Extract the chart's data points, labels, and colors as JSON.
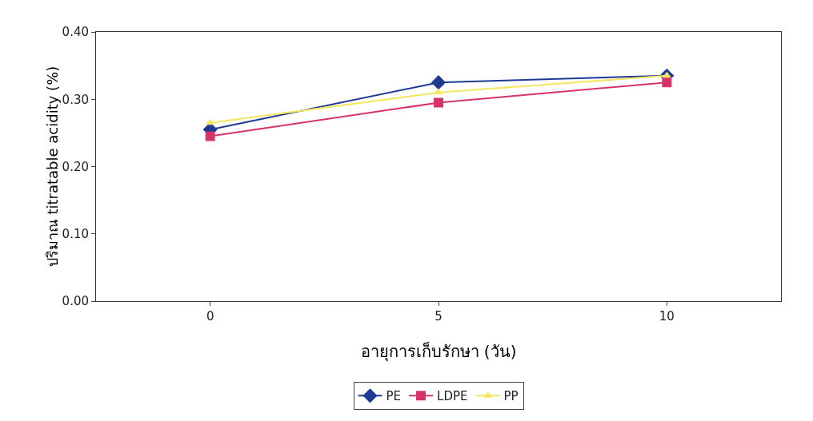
{
  "chart_data": {
    "type": "line",
    "xlabel": "อายุการเก็บรักษา (วัน)",
    "ylabel": "ปริมาณ titratable acidity (%)",
    "categories": [
      "0",
      "5",
      "10"
    ],
    "series": [
      {
        "name": "PE",
        "color": "#1f3a93",
        "marker": "diamond",
        "values": [
          0.255,
          0.325,
          0.335
        ]
      },
      {
        "name": "LDPE",
        "color": "#d6336c",
        "marker": "square",
        "values": [
          0.245,
          0.295,
          0.325
        ]
      },
      {
        "name": "PP",
        "color": "#f5e663",
        "marker": "triangle",
        "values": [
          0.265,
          0.31,
          0.335
        ]
      }
    ],
    "ylim": [
      0,
      0.4
    ],
    "yticks": [
      {
        "value": 0,
        "label": "0.00"
      },
      {
        "value": 0.1,
        "label": "0.10"
      },
      {
        "value": 0.2,
        "label": "0.20"
      },
      {
        "value": 0.3,
        "label": "0.30"
      },
      {
        "value": 0.4,
        "label": "0.40"
      }
    ],
    "grid": false,
    "legend": "bottom",
    "line_style": "solid"
  }
}
